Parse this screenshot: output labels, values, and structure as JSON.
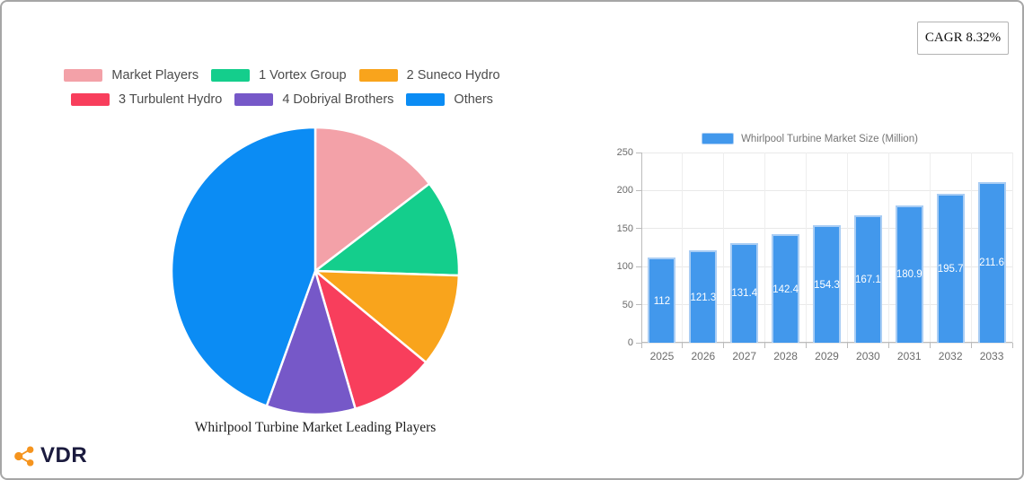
{
  "header": {
    "cagr_label": "CAGR 8.32%"
  },
  "logo": {
    "text": "VDR",
    "icon": "share-network-icon",
    "icon_color": "#f5941e",
    "text_color": "#1b1b3e"
  },
  "chart_data": [
    {
      "type": "pie",
      "title": "Whirlpool Turbine Market Leading Players",
      "labels": [
        "Market Players",
        "1 Vortex Group",
        "2 Suneco Hydro",
        "3 Turbulent Hydro",
        "4 Dobriyal Brothers",
        "Others"
      ],
      "values_percent": [
        14.6,
        10.9,
        10.5,
        9.5,
        10.0,
        44.5
      ],
      "colors": [
        "#f3a1a8",
        "#14ce8c",
        "#f9a41c",
        "#f83e5c",
        "#7658c8",
        "#0b8cf4"
      ],
      "legend_position": "top",
      "legend_rows": [
        [
          0,
          1,
          2
        ],
        [
          3,
          4,
          5
        ]
      ],
      "start_angle_deg": 0,
      "slice_border_color": "#ffffff"
    },
    {
      "type": "bar",
      "series_label": "Whirlpool Turbine Market Size (Million)",
      "categories": [
        "2025",
        "2026",
        "2027",
        "2028",
        "2029",
        "2030",
        "2031",
        "2032",
        "2033"
      ],
      "values": [
        112,
        121.3,
        131.4,
        142.4,
        154.3,
        167.1,
        180.9,
        195.7,
        211.6
      ],
      "ylim": [
        0,
        250
      ],
      "yticks": [
        0,
        50,
        100,
        150,
        200,
        250
      ],
      "bar_color": "#4298ec",
      "bar_border_color": "#a9cdf4",
      "grid": true,
      "value_label_style": "inside-center-white",
      "legend_position": "top"
    }
  ]
}
